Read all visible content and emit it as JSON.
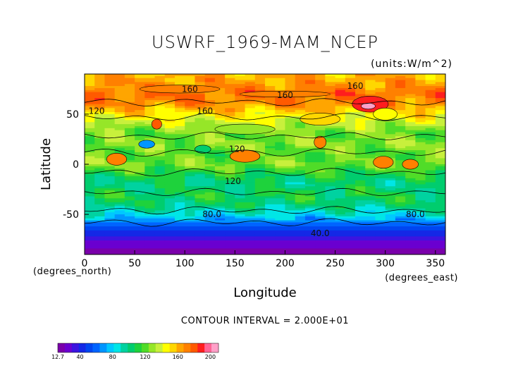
{
  "chart_data": {
    "type": "heatmap",
    "title": "USWRF_1969-MAM_NCEP",
    "units": "(units:W/m^2)",
    "xlabel": "Longitude",
    "ylabel": "Latitude",
    "x_unit_label": "(degrees_east)",
    "y_unit_label": "(degrees_north)",
    "xlim": [
      0,
      360
    ],
    "ylim": [
      -90,
      90
    ],
    "x_ticks": [
      "0",
      "50",
      "100",
      "150",
      "200",
      "250",
      "300",
      "350"
    ],
    "y_ticks": [
      "50",
      "0",
      "-50"
    ],
    "contour_interval_text": "CONTOUR INTERVAL = 2.000E+01",
    "contour_labels": [
      {
        "text": "160",
        "x": 105,
        "y": 75
      },
      {
        "text": "160",
        "x": 200,
        "y": 69
      },
      {
        "text": "160",
        "x": 270,
        "y": 78
      },
      {
        "text": "160",
        "x": 120,
        "y": 53
      },
      {
        "text": "120",
        "x": 12,
        "y": 53
      },
      {
        "text": "120",
        "x": 152,
        "y": 15
      },
      {
        "text": "120",
        "x": 148,
        "y": -17
      },
      {
        "text": "80.0",
        "x": 127,
        "y": -50
      },
      {
        "text": "80.0",
        "x": 330,
        "y": -50
      },
      {
        "text": "40.0",
        "x": 235,
        "y": -69
      }
    ],
    "colorbar": {
      "min": 12.7,
      "max": 210,
      "tick_labels": [
        "12.7",
        "40",
        "80",
        "120",
        "160",
        "200"
      ],
      "tick_values": [
        12.7,
        40,
        80,
        120,
        160,
        200
      ]
    },
    "zonal_mean_profile": {
      "latitude": [
        90,
        80,
        70,
        60,
        50,
        40,
        30,
        20,
        10,
        0,
        -10,
        -20,
        -30,
        -40,
        -50,
        -60,
        -70,
        -80,
        -90
      ],
      "value": [
        160,
        165,
        175,
        168,
        150,
        135,
        122,
        128,
        120,
        125,
        110,
        100,
        108,
        102,
        85,
        60,
        40,
        25,
        12.7
      ]
    }
  }
}
